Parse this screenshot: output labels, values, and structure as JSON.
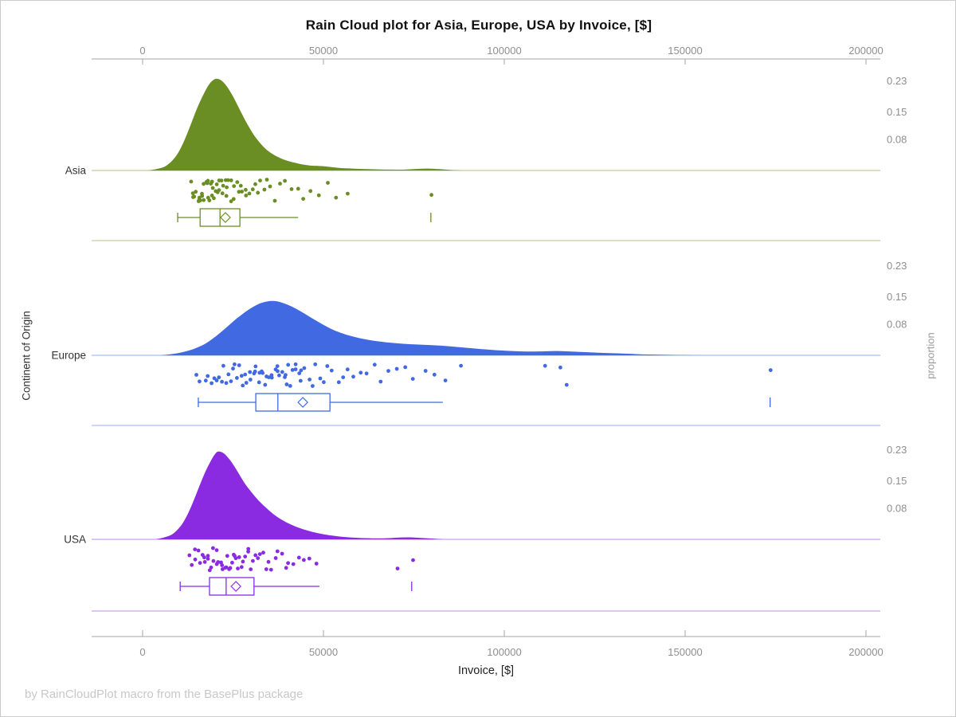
{
  "footer": {
    "text": "by RainCloudPlot macro from the BasePlus package"
  },
  "colors": {
    "asia": "#6a8e23",
    "europe": "#4169e1",
    "usa": "#8a2be2",
    "axis_line": "#a6a6a6",
    "tick_label": "#8f8f8f",
    "category_label": "#333333",
    "title_text": "#111111",
    "footer_text": "#c8c8c8",
    "figure_border": "#cccccc"
  },
  "chart_data": {
    "type": "raincloud",
    "description": "Half-violin density cloud + jittered rain points + box plot with mean diamond, per continent",
    "title": "Rain Cloud plot for Asia, Europe, USA by Invoice, [$]",
    "xlabel": "Invoice, [$]",
    "ylabel": "Continent of Origin",
    "y2label": "proportion",
    "x_axis": {
      "range": [
        0,
        200000
      ],
      "tick_values": [
        0,
        50000,
        100000,
        150000,
        200000
      ],
      "tick_labels": [
        "0",
        "50000",
        "100000",
        "150000",
        "200000"
      ],
      "shown_top_and_bottom": true
    },
    "proportion_axis": {
      "tick_values": [
        0.23,
        0.15,
        0.08
      ],
      "tick_labels": [
        "0.23",
        "0.15",
        "0.08"
      ],
      "repeated_per_panel": true
    },
    "categories": [
      "Asia",
      "Europe",
      "USA"
    ],
    "series": [
      {
        "name": "Asia",
        "color": "#6a8e23",
        "density_peak_proportion": 0.234,
        "density": [
          [
            1500,
            0
          ],
          [
            4000,
            0.004
          ],
          [
            6500,
            0.012
          ],
          [
            9000,
            0.034
          ],
          [
            11000,
            0.066
          ],
          [
            13000,
            0.11
          ],
          [
            15000,
            0.158
          ],
          [
            17000,
            0.198
          ],
          [
            18500,
            0.222
          ],
          [
            20000,
            0.234
          ],
          [
            21500,
            0.232
          ],
          [
            23000,
            0.219
          ],
          [
            24500,
            0.198
          ],
          [
            26000,
            0.172
          ],
          [
            27500,
            0.144
          ],
          [
            29000,
            0.118
          ],
          [
            31000,
            0.088
          ],
          [
            33000,
            0.065
          ],
          [
            35000,
            0.048
          ],
          [
            37500,
            0.034
          ],
          [
            40000,
            0.025
          ],
          [
            43000,
            0.018
          ],
          [
            46000,
            0.013
          ],
          [
            50000,
            0.011
          ],
          [
            54000,
            0.007
          ],
          [
            58000,
            0.005
          ],
          [
            62000,
            0.0035
          ],
          [
            66000,
            0.0025
          ],
          [
            70000,
            0.002
          ],
          [
            73000,
            0.0025
          ],
          [
            76000,
            0.004
          ],
          [
            79000,
            0.005
          ],
          [
            82000,
            0.0035
          ],
          [
            85000,
            0.0015
          ],
          [
            88000,
            0
          ]
        ],
        "box": {
          "min": 9700,
          "q1": 15900,
          "median": 21400,
          "mean": 22900,
          "q3": 26900,
          "max": 43000,
          "far_outlier": 79700
        },
        "rain": [
          13200,
          13800,
          14100,
          14500,
          14900,
          15200,
          15500,
          15800,
          16100,
          16400,
          16700,
          17000,
          17200,
          17500,
          17800,
          18000,
          18300,
          18600,
          18900,
          19100,
          19400,
          19700,
          20000,
          20200,
          20500,
          20800,
          21100,
          21400,
          21700,
          22000,
          22300,
          22700,
          23000,
          23400,
          23800,
          24200,
          24600,
          25000,
          25500,
          26000,
          26500,
          27000,
          27600,
          28200,
          28800,
          29500,
          30200,
          31000,
          31800,
          32600,
          33500,
          34500,
          35500,
          36800,
          38000,
          39500,
          41000,
          42800,
          44500,
          46500,
          48500,
          51000,
          53500,
          56500,
          80000
        ]
      },
      {
        "name": "Europe",
        "color": "#4169e1",
        "density_peak_proportion": 0.139,
        "density": [
          [
            5000,
            0
          ],
          [
            8000,
            0.003
          ],
          [
            11000,
            0.008
          ],
          [
            14000,
            0.016
          ],
          [
            17000,
            0.028
          ],
          [
            20000,
            0.047
          ],
          [
            23000,
            0.07
          ],
          [
            26000,
            0.094
          ],
          [
            29000,
            0.115
          ],
          [
            32000,
            0.131
          ],
          [
            34500,
            0.138
          ],
          [
            36500,
            0.139
          ],
          [
            38500,
            0.135
          ],
          [
            41000,
            0.126
          ],
          [
            44000,
            0.111
          ],
          [
            47000,
            0.094
          ],
          [
            50000,
            0.078
          ],
          [
            53000,
            0.064
          ],
          [
            57000,
            0.051
          ],
          [
            61000,
            0.042
          ],
          [
            65000,
            0.036
          ],
          [
            70000,
            0.031
          ],
          [
            75000,
            0.028
          ],
          [
            80000,
            0.026
          ],
          [
            85000,
            0.023
          ],
          [
            90000,
            0.019
          ],
          [
            95000,
            0.015
          ],
          [
            100000,
            0.012
          ],
          [
            105000,
            0.01
          ],
          [
            110000,
            0.01
          ],
          [
            114000,
            0.011
          ],
          [
            118000,
            0.01
          ],
          [
            123000,
            0.008
          ],
          [
            128000,
            0.006
          ],
          [
            134000,
            0.004
          ],
          [
            140000,
            0.002
          ],
          [
            147000,
            0.001
          ],
          [
            155000,
            0
          ]
        ],
        "box": {
          "min": 15400,
          "q1": 31300,
          "median": 37400,
          "mean": 44300,
          "q3": 51800,
          "max": 83000,
          "far_outlier": 173500
        },
        "rain": [
          14800,
          16000,
          17500,
          18200,
          19000,
          19800,
          20500,
          21200,
          22000,
          22600,
          23200,
          23800,
          24400,
          25000,
          25600,
          26200,
          26800,
          27400,
          28000,
          28500,
          29000,
          29500,
          30000,
          30500,
          31000,
          31500,
          32000,
          32500,
          33000,
          33500,
          34000,
          34500,
          35000,
          35500,
          36000,
          36500,
          37000,
          37500,
          38000,
          38500,
          39000,
          39500,
          40000,
          40500,
          41000,
          41500,
          42000,
          42500,
          43000,
          43500,
          44000,
          45000,
          46000,
          47000,
          48000,
          49000,
          50000,
          51000,
          52500,
          54000,
          55500,
          57000,
          58500,
          60000,
          62000,
          64000,
          66000,
          68000,
          70000,
          72500,
          75000,
          78000,
          81000,
          84000,
          88000,
          111000,
          115500,
          117500,
          173500
        ]
      },
      {
        "name": "USA",
        "color": "#8a2be2",
        "density_peak_proportion": 0.225,
        "density": [
          [
            3500,
            0
          ],
          [
            6000,
            0.005
          ],
          [
            8500,
            0.015
          ],
          [
            11000,
            0.04
          ],
          [
            13000,
            0.075
          ],
          [
            15000,
            0.12
          ],
          [
            17000,
            0.166
          ],
          [
            18800,
            0.2
          ],
          [
            20000,
            0.218
          ],
          [
            21000,
            0.225
          ],
          [
            22500,
            0.22
          ],
          [
            24000,
            0.205
          ],
          [
            25500,
            0.185
          ],
          [
            27000,
            0.162
          ],
          [
            28500,
            0.14
          ],
          [
            30000,
            0.122
          ],
          [
            32000,
            0.1
          ],
          [
            34000,
            0.082
          ],
          [
            36000,
            0.066
          ],
          [
            38500,
            0.05
          ],
          [
            41000,
            0.038
          ],
          [
            44000,
            0.027
          ],
          [
            47000,
            0.019
          ],
          [
            50000,
            0.013
          ],
          [
            53000,
            0.009
          ],
          [
            56000,
            0.006
          ],
          [
            59000,
            0.004
          ],
          [
            62000,
            0.003
          ],
          [
            65000,
            0.0025
          ],
          [
            68000,
            0.003
          ],
          [
            71000,
            0.0045
          ],
          [
            74000,
            0.005
          ],
          [
            77000,
            0.0035
          ],
          [
            80000,
            0.002
          ],
          [
            83000,
            0
          ]
        ],
        "box": {
          "min": 10400,
          "q1": 18500,
          "median": 23100,
          "mean": 25800,
          "q3": 30800,
          "max": 48900,
          "far_outlier": 74400
        },
        "rain": [
          13000,
          13600,
          14200,
          14800,
          15300,
          15800,
          16300,
          16800,
          17300,
          17800,
          18200,
          18600,
          19000,
          19400,
          19800,
          20200,
          20600,
          21000,
          21400,
          21800,
          22200,
          22600,
          23000,
          23400,
          23800,
          24200,
          24600,
          25000,
          25500,
          26000,
          26500,
          27000,
          27500,
          28000,
          28500,
          29000,
          29500,
          30000,
          30600,
          31200,
          31800,
          32500,
          33200,
          34000,
          34800,
          35600,
          36500,
          37500,
          38500,
          39500,
          40500,
          41800,
          43000,
          44500,
          46000,
          48000,
          70500,
          74500
        ]
      }
    ]
  }
}
